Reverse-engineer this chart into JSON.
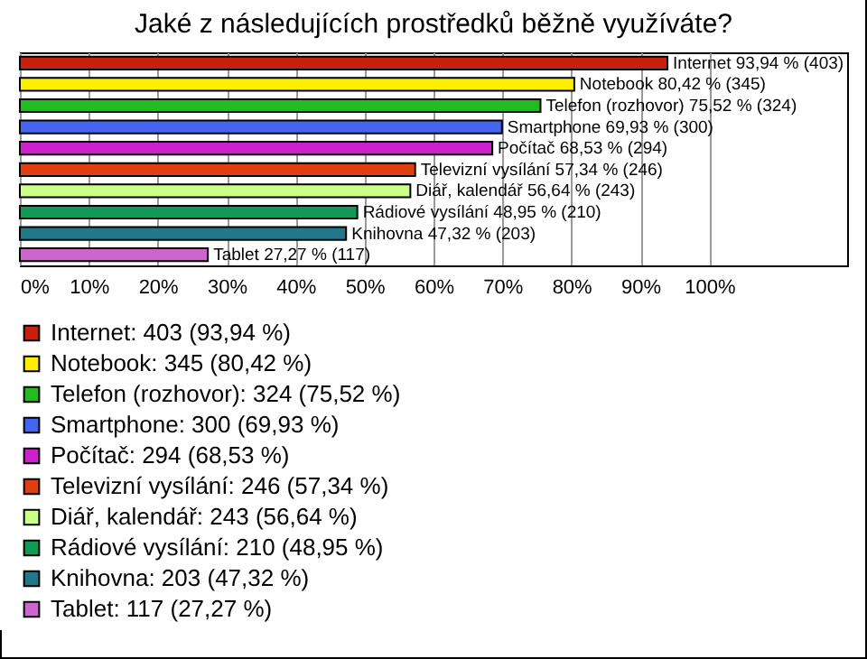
{
  "chart_data": {
    "type": "bar",
    "orientation": "horizontal",
    "title": "Jaké z následujících prostředků běžně využíváte?",
    "categories": [
      null,
      null,
      null,
      null,
      null,
      null,
      null,
      null,
      null,
      null
    ],
    "series": [
      {
        "name": "Internet: 403 (93,94 %)",
        "color": "#c8200c",
        "values": [
          93.94,
          null,
          null,
          null,
          null,
          null,
          null,
          null,
          null,
          null
        ],
        "value_labels": [
          "Internet 93,94 % (403)",
          null,
          null,
          null,
          null,
          null,
          null,
          null,
          null,
          null
        ]
      },
      {
        "name": "Notebook: 345 (80,42 %)",
        "color": "#ffee00",
        "values": [
          null,
          80.42,
          null,
          null,
          null,
          null,
          null,
          null,
          null,
          null
        ],
        "value_labels": [
          null,
          "Notebook 80,42 % (345)",
          null,
          null,
          null,
          null,
          null,
          null,
          null,
          null
        ]
      },
      {
        "name": "Telefon (rozhovor): 324 (75,52 %)",
        "color": "#22bb22",
        "values": [
          null,
          null,
          75.52,
          null,
          null,
          null,
          null,
          null,
          null,
          null
        ],
        "value_labels": [
          null,
          null,
          "Telefon (rozhovor) 75,52 % (324)",
          null,
          null,
          null,
          null,
          null,
          null,
          null
        ]
      },
      {
        "name": "Smartphone: 300 (69,93 %)",
        "color": "#4466ee",
        "values": [
          null,
          null,
          null,
          69.93,
          null,
          null,
          null,
          null,
          null,
          null
        ],
        "value_labels": [
          null,
          null,
          null,
          "Smartphone 69,93 % (300)",
          null,
          null,
          null,
          null,
          null,
          null
        ]
      },
      {
        "name": "Počítač: 294 (68,53 %)",
        "color": "#cc22cc",
        "values": [
          null,
          null,
          null,
          null,
          68.53,
          null,
          null,
          null,
          null,
          null
        ],
        "value_labels": [
          null,
          null,
          null,
          null,
          "Počítač 68,53 % (294)",
          null,
          null,
          null,
          null,
          null
        ]
      },
      {
        "name": "Televizní vysílání: 246 (57,34 %)",
        "color": "#e04010",
        "values": [
          null,
          null,
          null,
          null,
          null,
          57.34,
          null,
          null,
          null,
          null
        ],
        "value_labels": [
          null,
          null,
          null,
          null,
          null,
          "Televizní vysílání 57,34 % (246)",
          null,
          null,
          null,
          null
        ]
      },
      {
        "name": "Diář, kalendář: 243 (56,64 %)",
        "color": "#ccff88",
        "values": [
          null,
          null,
          null,
          null,
          null,
          null,
          56.64,
          null,
          null,
          null
        ],
        "value_labels": [
          null,
          null,
          null,
          null,
          null,
          null,
          "Diář, kalendář 56,64 % (243)",
          null,
          null,
          null
        ]
      },
      {
        "name": "Rádiové vysílání: 210 (48,95 %)",
        "color": "#119955",
        "values": [
          null,
          null,
          null,
          null,
          null,
          null,
          null,
          48.95,
          null,
          null
        ],
        "value_labels": [
          null,
          null,
          null,
          null,
          null,
          null,
          null,
          "Rádiové vysílání 48,95 % (210)",
          null,
          null
        ]
      },
      {
        "name": "Knihovna: 203 (47,32 %)",
        "color": "#227788",
        "values": [
          null,
          null,
          null,
          null,
          null,
          null,
          null,
          null,
          47.32,
          null
        ],
        "value_labels": [
          null,
          null,
          null,
          null,
          null,
          null,
          null,
          null,
          "Knihovna 47,32 % (203)",
          null
        ]
      },
      {
        "name": "Tablet: 117 (27,27 %)",
        "color": "#cc66cc",
        "values": [
          null,
          null,
          null,
          null,
          null,
          null,
          null,
          null,
          null,
          27.27
        ],
        "value_labels": [
          null,
          null,
          null,
          null,
          null,
          null,
          null,
          null,
          null,
          "Tablet 27,27 % (117)"
        ]
      }
    ],
    "xlim": [
      0,
      120
    ],
    "xticks": [
      {
        "value": 0,
        "label": "0%"
      },
      {
        "value": 10,
        "label": "10%"
      },
      {
        "value": 20,
        "label": "20%"
      },
      {
        "value": 30,
        "label": "30%"
      },
      {
        "value": 40,
        "label": "40%"
      },
      {
        "value": 50,
        "label": "50%"
      },
      {
        "value": 60,
        "label": "60%"
      },
      {
        "value": 70,
        "label": "70%"
      },
      {
        "value": 80,
        "label": "80%"
      },
      {
        "value": 90,
        "label": "90%"
      },
      {
        "value": 100,
        "label": "100%"
      }
    ],
    "grid": "x",
    "legend": "bottom",
    "tick_labels": "x"
  }
}
